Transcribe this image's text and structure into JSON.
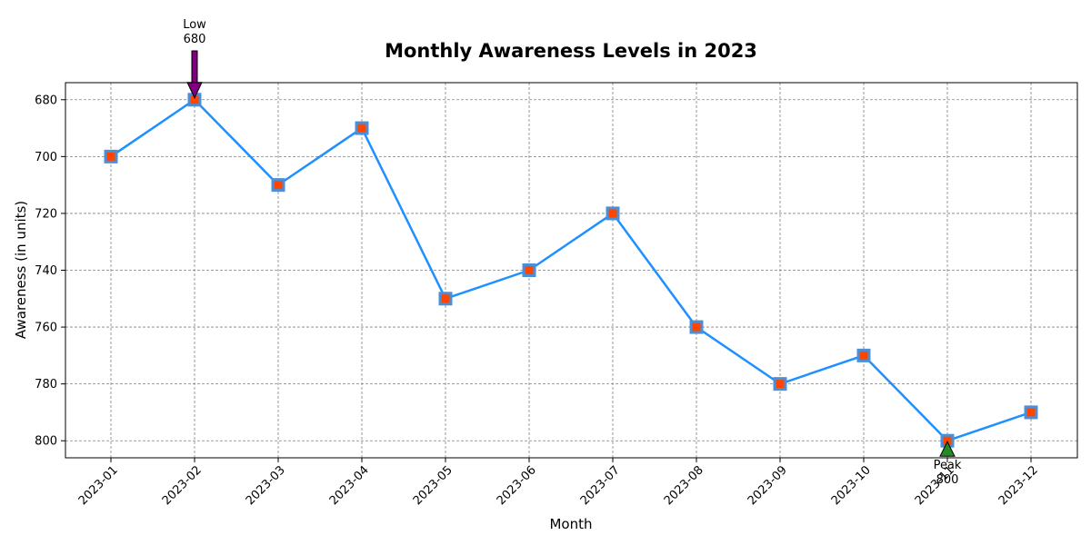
{
  "chart_data": {
    "type": "line",
    "title": "Monthly Awareness Levels in 2023",
    "xlabel": "Month",
    "ylabel": "Awareness (in units)",
    "categories": [
      "2023-01",
      "2023-02",
      "2023-03",
      "2023-04",
      "2023-05",
      "2023-06",
      "2023-07",
      "2023-08",
      "2023-09",
      "2023-10",
      "2023-11",
      "2023-12"
    ],
    "values": [
      700,
      680,
      710,
      690,
      750,
      740,
      720,
      760,
      780,
      770,
      800,
      790
    ],
    "y_inverted": true,
    "ylim": [
      806,
      674
    ],
    "yticks": [
      680,
      700,
      720,
      740,
      760,
      780,
      800
    ],
    "grid": true,
    "line_color": "#1e90ff",
    "marker_edge_color": "#4a90d9",
    "marker_face_color": "#ff4500",
    "annotations": [
      {
        "label": "Low",
        "value_text": "680",
        "category": "2023-02",
        "value": 680,
        "arrow_color": "#800080",
        "direction": "down"
      },
      {
        "label": "Peak",
        "value_text": "800",
        "category": "2023-11",
        "value": 800,
        "arrow_color": "#228b22",
        "direction": "up"
      }
    ]
  }
}
